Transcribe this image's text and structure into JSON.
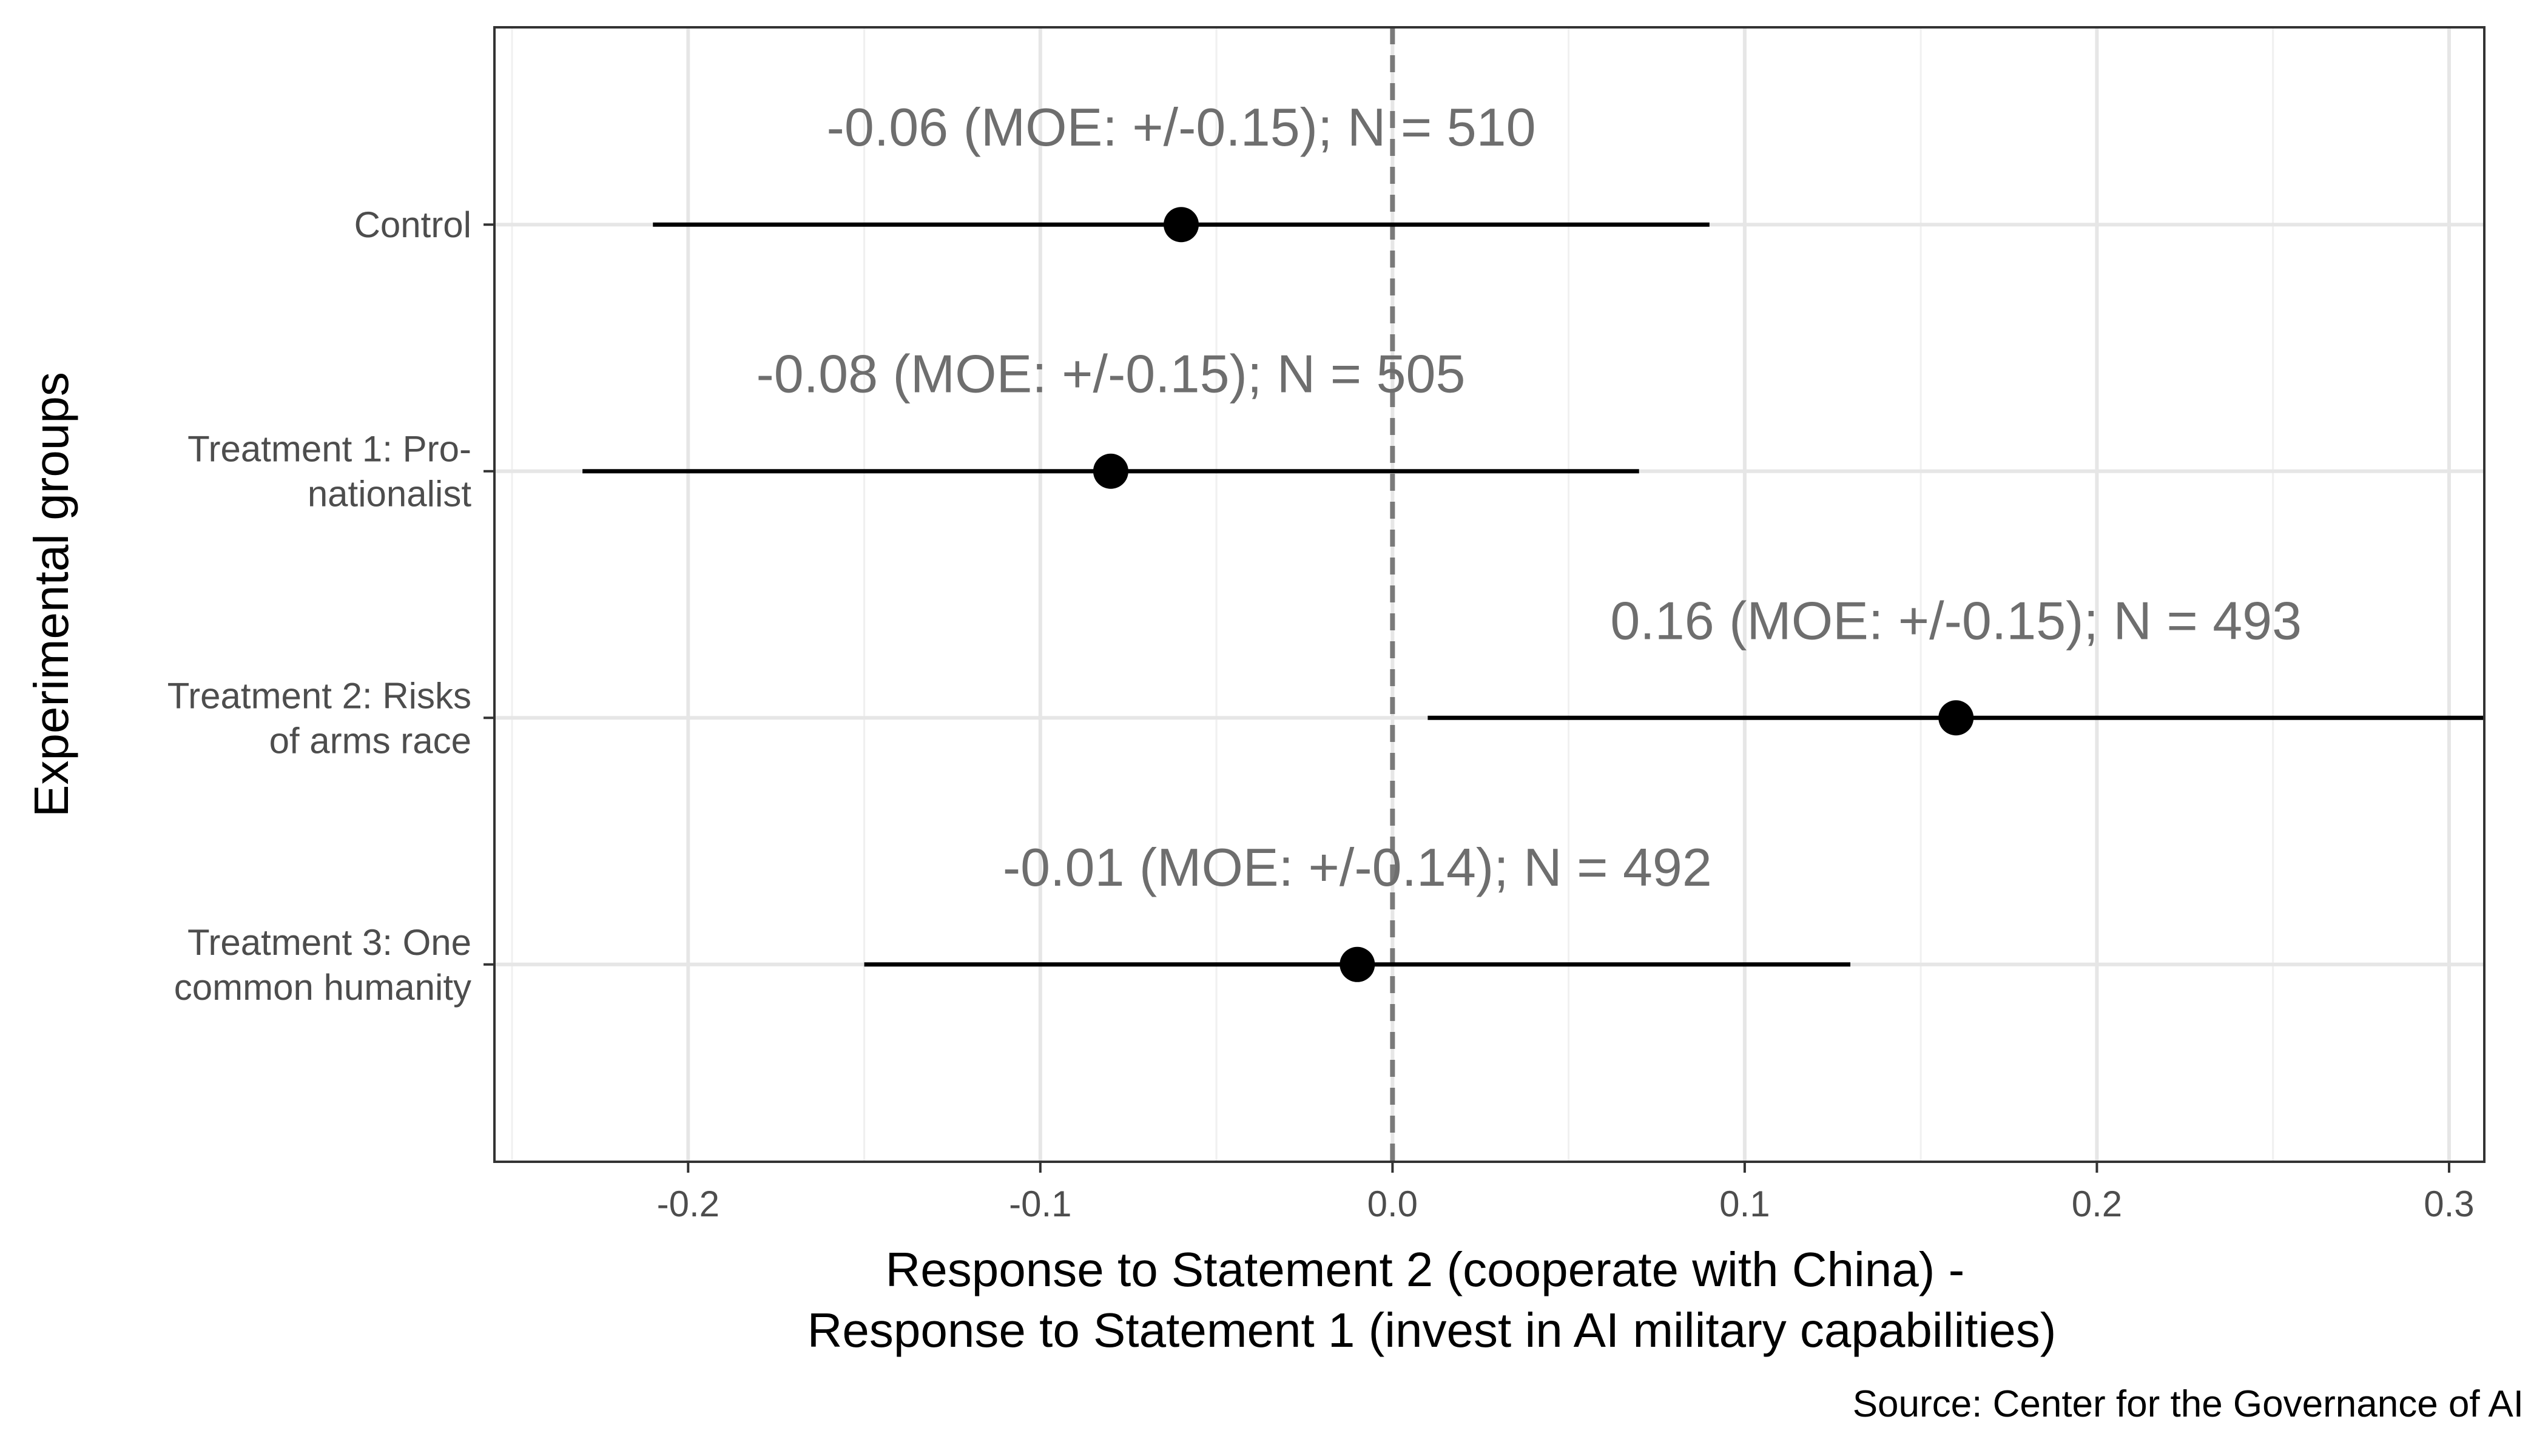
{
  "chart_data": {
    "type": "scatter",
    "subtype": "dot-and-whisker",
    "xlabel_lines": [
      "Response to Statement 2 (cooperate with China) -",
      "Response to Statement 1 (invest in AI military capabilities)"
    ],
    "ylabel": "Experimental groups",
    "source": "Source: Center for the Governance of AI",
    "xlim": [
      -0.255,
      0.31
    ],
    "x_ticks": [
      -0.2,
      -0.1,
      0.0,
      0.1,
      0.2,
      0.3
    ],
    "x_tick_labels": [
      "-0.2",
      "-0.1",
      "0.0",
      "0.1",
      "0.2",
      "0.3"
    ],
    "reference_line": 0,
    "grid": true,
    "groups": [
      {
        "label_lines": [
          "Control"
        ],
        "estimate": -0.06,
        "moe": 0.15,
        "n": 510,
        "annotation": "-0.06 (MOE: +/-0.15); N = 510"
      },
      {
        "label_lines": [
          "Treatment 1: Pro-",
          "nationalist"
        ],
        "estimate": -0.08,
        "moe": 0.15,
        "n": 505,
        "annotation": "-0.08 (MOE: +/-0.15); N = 505"
      },
      {
        "label_lines": [
          "Treatment 2: Risks",
          "of arms race"
        ],
        "estimate": 0.16,
        "moe": 0.15,
        "n": 493,
        "annotation": "0.16 (MOE: +/-0.15); N = 493"
      },
      {
        "label_lines": [
          "Treatment 3: One",
          "common humanity"
        ],
        "estimate": -0.01,
        "moe": 0.14,
        "n": 492,
        "annotation": "-0.01 (MOE: +/-0.14); N = 492"
      }
    ],
    "colors": {
      "points": "#000000",
      "annotation": "#6e6e6e",
      "grid_major": "#e6e6e6",
      "grid_minor": "#f0f0f0",
      "reference_line": "#7a7a7a",
      "panel_border": "#333333"
    }
  }
}
